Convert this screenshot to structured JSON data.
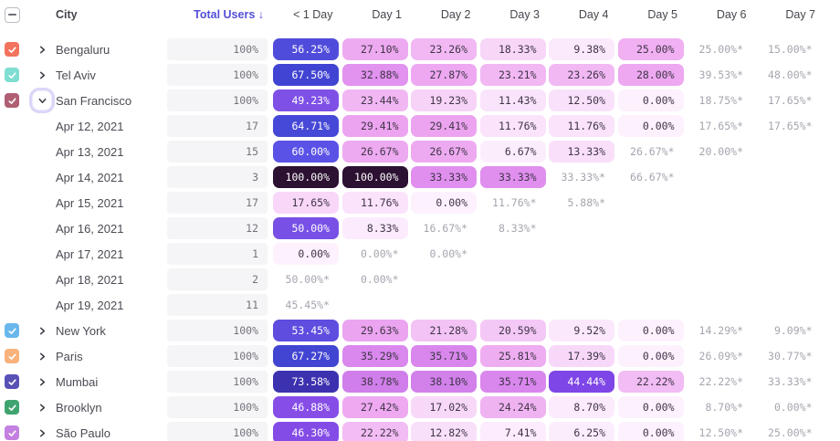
{
  "header": {
    "select_all_state": "indeterminate",
    "city_label": "City",
    "total_users_label": "Total Users ↓",
    "day_columns": [
      "< 1 Day",
      "Day 1",
      "Day 2",
      "Day 3",
      "Day 4",
      "Day 5",
      "Day 6",
      "Day 7"
    ]
  },
  "colors": {
    "sort_header": "#544FD8",
    "header_text": "#45454D",
    "label_text": "#4B4B54",
    "pill_bg": "#F5F4F6",
    "pill_text": "#73737C",
    "estimate_text": "#A5A5AF",
    "cell_text_dark": "#3F3547",
    "cell_text_light": "#FFFFFF",
    "focus_ring": "#DCD5F8"
  },
  "heat_scale": {
    "white_text_min": 43,
    "stops": [
      [
        0,
        "#FDF1FD"
      ],
      [
        8,
        "#FCECFD"
      ],
      [
        11,
        "#FAE5FB"
      ],
      [
        14,
        "#F9DDFA"
      ],
      [
        19,
        "#F7D5F8"
      ],
      [
        22,
        "#F2BDF4"
      ],
      [
        26,
        "#EFACF1"
      ],
      [
        30,
        "#EBA3F0"
      ],
      [
        34,
        "#DE8BEF"
      ],
      [
        40,
        "#CD7CE9"
      ],
      [
        44,
        "#7D44E6"
      ],
      [
        48,
        "#8A52E8"
      ],
      [
        52,
        "#664DE2"
      ],
      [
        56,
        "#4F4CDA"
      ],
      [
        60,
        "#5A52E6"
      ],
      [
        65,
        "#4547D6"
      ],
      [
        69,
        "#3F42CF"
      ],
      [
        75,
        "#3B2DA6"
      ],
      [
        100,
        "#2C1132"
      ]
    ]
  },
  "rows": [
    {
      "type": "city",
      "label": "Bengaluru",
      "checkbox_color": "#F3745E",
      "expanded": false,
      "total": "100%",
      "cells": [
        {
          "t": "56.25%",
          "v": 56.25,
          "s": "f"
        },
        {
          "t": "27.10%",
          "v": 27.1,
          "s": "f"
        },
        {
          "t": "23.26%",
          "v": 23.26,
          "s": "f"
        },
        {
          "t": "18.33%",
          "v": 18.33,
          "s": "f"
        },
        {
          "t": "9.38%",
          "v": 9.38,
          "s": "f"
        },
        {
          "t": "25.00%",
          "v": 25.0,
          "s": "f"
        },
        {
          "t": "25.00%*",
          "s": "e"
        },
        {
          "t": "15.00%*",
          "s": "e"
        }
      ]
    },
    {
      "type": "city",
      "label": "Tel Aviv",
      "checkbox_color": "#7EDED1",
      "expanded": false,
      "total": "100%",
      "cells": [
        {
          "t": "67.50%",
          "v": 67.5,
          "s": "f"
        },
        {
          "t": "32.88%",
          "v": 32.88,
          "s": "f"
        },
        {
          "t": "27.87%",
          "v": 27.87,
          "s": "f"
        },
        {
          "t": "23.21%",
          "v": 23.21,
          "s": "f"
        },
        {
          "t": "23.26%",
          "v": 23.26,
          "s": "f"
        },
        {
          "t": "28.00%",
          "v": 28.0,
          "s": "f"
        },
        {
          "t": "39.53%*",
          "s": "e"
        },
        {
          "t": "48.00%*",
          "s": "e"
        }
      ]
    },
    {
      "type": "city",
      "label": "San Francisco",
      "checkbox_color": "#B05F73",
      "expanded": true,
      "total": "100%",
      "cells": [
        {
          "t": "49.23%",
          "v": 49.23,
          "s": "f"
        },
        {
          "t": "23.44%",
          "v": 23.44,
          "s": "f"
        },
        {
          "t": "19.23%",
          "v": 19.23,
          "s": "f"
        },
        {
          "t": "11.43%",
          "v": 11.43,
          "s": "f"
        },
        {
          "t": "12.50%",
          "v": 12.5,
          "s": "f"
        },
        {
          "t": "0.00%",
          "v": 0,
          "s": "f"
        },
        {
          "t": "18.75%*",
          "s": "e"
        },
        {
          "t": "17.65%*",
          "s": "e"
        }
      ]
    },
    {
      "type": "date",
      "label": "Apr 12, 2021",
      "total": "17",
      "cells": [
        {
          "t": "64.71%",
          "v": 64.71,
          "s": "f"
        },
        {
          "t": "29.41%",
          "v": 29.41,
          "s": "f"
        },
        {
          "t": "29.41%",
          "v": 29.41,
          "s": "f"
        },
        {
          "t": "11.76%",
          "v": 11.76,
          "s": "f"
        },
        {
          "t": "11.76%",
          "v": 11.76,
          "s": "f"
        },
        {
          "t": "0.00%",
          "v": 0,
          "s": "f"
        },
        {
          "t": "17.65%*",
          "s": "e"
        },
        {
          "t": "17.65%*",
          "s": "e"
        }
      ]
    },
    {
      "type": "date",
      "label": "Apr 13, 2021",
      "total": "15",
      "cells": [
        {
          "t": "60.00%",
          "v": 60.0,
          "s": "f"
        },
        {
          "t": "26.67%",
          "v": 26.67,
          "s": "f"
        },
        {
          "t": "26.67%",
          "v": 26.67,
          "s": "f"
        },
        {
          "t": "6.67%",
          "v": 6.67,
          "s": "f"
        },
        {
          "t": "13.33%",
          "v": 13.33,
          "s": "f"
        },
        {
          "t": "26.67%*",
          "s": "e"
        },
        {
          "t": "20.00%*",
          "s": "e"
        },
        {
          "s": "n"
        }
      ]
    },
    {
      "type": "date",
      "label": "Apr 14, 2021",
      "total": "3",
      "cells": [
        {
          "t": "100.00%",
          "v": 100,
          "s": "f"
        },
        {
          "t": "100.00%",
          "v": 100,
          "s": "f"
        },
        {
          "t": "33.33%",
          "v": 33.33,
          "s": "f"
        },
        {
          "t": "33.33%",
          "v": 33.33,
          "s": "f"
        },
        {
          "t": "33.33%*",
          "s": "e"
        },
        {
          "t": "66.67%*",
          "s": "e"
        },
        {
          "s": "n"
        },
        {
          "s": "n"
        }
      ]
    },
    {
      "type": "date",
      "label": "Apr 15, 2021",
      "total": "17",
      "cells": [
        {
          "t": "17.65%",
          "v": 17.65,
          "s": "f"
        },
        {
          "t": "11.76%",
          "v": 11.76,
          "s": "f"
        },
        {
          "t": "0.00%",
          "v": 0,
          "s": "f"
        },
        {
          "t": "11.76%*",
          "s": "e"
        },
        {
          "t": "5.88%*",
          "s": "e"
        },
        {
          "s": "n"
        },
        {
          "s": "n"
        },
        {
          "s": "n"
        }
      ]
    },
    {
      "type": "date",
      "label": "Apr 16, 2021",
      "total": "12",
      "cells": [
        {
          "t": "50.00%",
          "v": 50.0,
          "s": "f"
        },
        {
          "t": "8.33%",
          "v": 8.33,
          "s": "f"
        },
        {
          "t": "16.67%*",
          "s": "e"
        },
        {
          "t": "8.33%*",
          "s": "e"
        },
        {
          "s": "n"
        },
        {
          "s": "n"
        },
        {
          "s": "n"
        },
        {
          "s": "n"
        }
      ]
    },
    {
      "type": "date",
      "label": "Apr 17, 2021",
      "total": "1",
      "cells": [
        {
          "t": "0.00%",
          "v": 0,
          "s": "f"
        },
        {
          "t": "0.00%*",
          "s": "e"
        },
        {
          "t": "0.00%*",
          "s": "e"
        },
        {
          "s": "n"
        },
        {
          "s": "n"
        },
        {
          "s": "n"
        },
        {
          "s": "n"
        },
        {
          "s": "n"
        }
      ]
    },
    {
      "type": "date",
      "label": "Apr 18, 2021",
      "total": "2",
      "cells": [
        {
          "t": "50.00%*",
          "s": "e"
        },
        {
          "t": "0.00%*",
          "s": "e"
        },
        {
          "s": "n"
        },
        {
          "s": "n"
        },
        {
          "s": "n"
        },
        {
          "s": "n"
        },
        {
          "s": "n"
        },
        {
          "s": "n"
        }
      ]
    },
    {
      "type": "date",
      "label": "Apr 19, 2021",
      "total": "11",
      "cells": [
        {
          "t": "45.45%*",
          "s": "e"
        },
        {
          "s": "n"
        },
        {
          "s": "n"
        },
        {
          "s": "n"
        },
        {
          "s": "n"
        },
        {
          "s": "n"
        },
        {
          "s": "n"
        },
        {
          "s": "n"
        }
      ]
    },
    {
      "type": "city",
      "label": "New York",
      "checkbox_color": "#69B7EC",
      "expanded": false,
      "total": "100%",
      "cells": [
        {
          "t": "53.45%",
          "v": 53.45,
          "s": "f"
        },
        {
          "t": "29.63%",
          "v": 29.63,
          "s": "f"
        },
        {
          "t": "21.28%",
          "v": 21.28,
          "s": "f"
        },
        {
          "t": "20.59%",
          "v": 20.59,
          "s": "f"
        },
        {
          "t": "9.52%",
          "v": 9.52,
          "s": "f"
        },
        {
          "t": "0.00%",
          "v": 0,
          "s": "f"
        },
        {
          "t": "14.29%*",
          "s": "e"
        },
        {
          "t": "9.09%*",
          "s": "e"
        }
      ]
    },
    {
      "type": "city",
      "label": "Paris",
      "checkbox_color": "#F9B27B",
      "expanded": false,
      "total": "100%",
      "cells": [
        {
          "t": "67.27%",
          "v": 67.27,
          "s": "f"
        },
        {
          "t": "35.29%",
          "v": 35.29,
          "s": "f"
        },
        {
          "t": "35.71%",
          "v": 35.71,
          "s": "f"
        },
        {
          "t": "25.81%",
          "v": 25.81,
          "s": "f"
        },
        {
          "t": "17.39%",
          "v": 17.39,
          "s": "f"
        },
        {
          "t": "0.00%",
          "v": 0,
          "s": "f"
        },
        {
          "t": "26.09%*",
          "s": "e"
        },
        {
          "t": "30.77%*",
          "s": "e"
        }
      ]
    },
    {
      "type": "city",
      "label": "Mumbai",
      "checkbox_color": "#5A51B6",
      "expanded": false,
      "total": "100%",
      "cells": [
        {
          "t": "73.58%",
          "v": 73.58,
          "s": "f"
        },
        {
          "t": "38.78%",
          "v": 38.78,
          "s": "f"
        },
        {
          "t": "38.10%",
          "v": 38.1,
          "s": "f"
        },
        {
          "t": "35.71%",
          "v": 35.71,
          "s": "f"
        },
        {
          "t": "44.44%",
          "v": 44.44,
          "s": "f"
        },
        {
          "t": "22.22%",
          "v": 22.22,
          "s": "f"
        },
        {
          "t": "22.22%*",
          "s": "e"
        },
        {
          "t": "33.33%*",
          "s": "e"
        }
      ]
    },
    {
      "type": "city",
      "label": "Brooklyn",
      "checkbox_color": "#3FA46F",
      "expanded": false,
      "total": "100%",
      "cells": [
        {
          "t": "46.88%",
          "v": 46.88,
          "s": "f"
        },
        {
          "t": "27.42%",
          "v": 27.42,
          "s": "f"
        },
        {
          "t": "17.02%",
          "v": 17.02,
          "s": "f"
        },
        {
          "t": "24.24%",
          "v": 24.24,
          "s": "f"
        },
        {
          "t": "8.70%",
          "v": 8.7,
          "s": "f"
        },
        {
          "t": "0.00%",
          "v": 0,
          "s": "f"
        },
        {
          "t": "8.70%*",
          "s": "e"
        },
        {
          "t": "0.00%*",
          "s": "e"
        }
      ]
    },
    {
      "type": "city",
      "label": "São Paulo",
      "checkbox_color": "#C480E0",
      "expanded": false,
      "total": "100%",
      "cells": [
        {
          "t": "46.30%",
          "v": 46.3,
          "s": "f"
        },
        {
          "t": "22.22%",
          "v": 22.22,
          "s": "f"
        },
        {
          "t": "12.82%",
          "v": 12.82,
          "s": "f"
        },
        {
          "t": "7.41%",
          "v": 7.41,
          "s": "f"
        },
        {
          "t": "6.25%",
          "v": 6.25,
          "s": "f"
        },
        {
          "t": "0.00%",
          "v": 0,
          "s": "f"
        },
        {
          "t": "12.50%*",
          "s": "e"
        },
        {
          "t": "25.00%*",
          "s": "e"
        }
      ]
    }
  ]
}
